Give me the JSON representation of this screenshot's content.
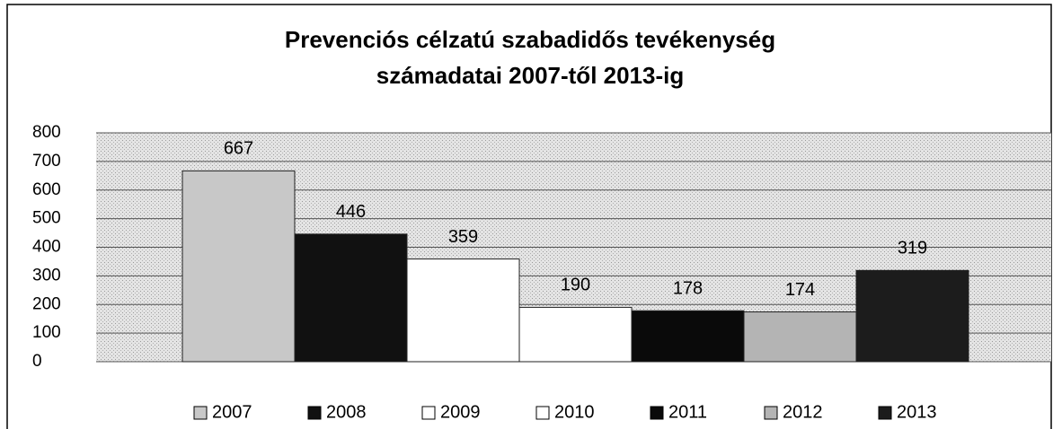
{
  "chart_data": {
    "type": "bar",
    "title": [
      "Prevenciós célzatú szabadidős tevékenység",
      "számadatai 2007-től 2013-ig"
    ],
    "series": [
      {
        "name": "2007",
        "color": "#c8c8c8",
        "values": [
          667
        ]
      },
      {
        "name": "2008",
        "color": "#111111",
        "values": [
          446
        ]
      },
      {
        "name": "2009",
        "color": "#ffffff",
        "values": [
          359
        ]
      },
      {
        "name": "2010",
        "color": "#ffffff",
        "values": [
          190
        ]
      },
      {
        "name": "2011",
        "color": "#0a0a0a",
        "values": [
          178
        ]
      },
      {
        "name": "2012",
        "color": "#b4b4b4",
        "values": [
          174
        ]
      },
      {
        "name": "2013",
        "color": "#1c1c1c",
        "values": [
          319
        ]
      }
    ],
    "ylim": [
      0,
      800
    ],
    "yticks": [
      0,
      100,
      200,
      300,
      400,
      500,
      600,
      700,
      800
    ],
    "grid": true,
    "legend": "bottom"
  }
}
